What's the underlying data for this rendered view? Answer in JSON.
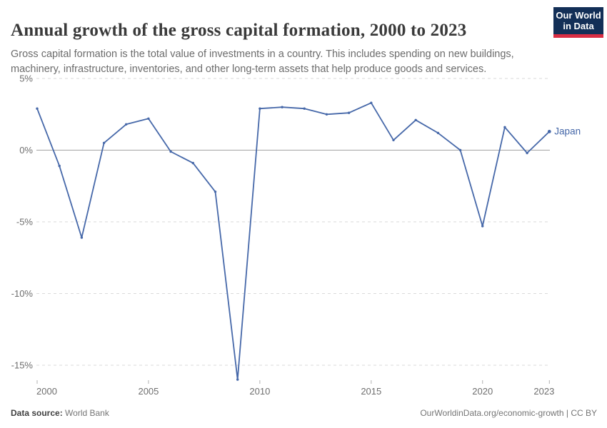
{
  "header": {
    "title": "Annual growth of the gross capital formation, 2000 to 2023",
    "subtitle": "Gross capital formation is the total value of investments in a country. This includes spending on new buildings, machinery, infrastructure, inventories, and other long-term assets that help produce goods and services.",
    "logo": {
      "line1": "Our World",
      "line2": "in Data",
      "bg": "#132f57",
      "accent": "#d92d43"
    }
  },
  "chart_data": {
    "type": "line",
    "title": "Annual growth of the gross capital formation, 2000 to 2023",
    "x": [
      2000,
      2001,
      2002,
      2003,
      2004,
      2005,
      2006,
      2007,
      2008,
      2009,
      2010,
      2011,
      2012,
      2013,
      2014,
      2015,
      2016,
      2017,
      2018,
      2019,
      2020,
      2021,
      2022,
      2023
    ],
    "series": [
      {
        "name": "Japan",
        "color": "#4668a9",
        "values": [
          2.9,
          -1.1,
          -6.1,
          0.5,
          1.8,
          2.2,
          -0.1,
          -0.9,
          -2.9,
          -16.0,
          2.9,
          3.0,
          2.9,
          2.5,
          2.6,
          3.3,
          0.7,
          2.1,
          1.2,
          0.0,
          -5.3,
          1.6,
          -0.2,
          1.3
        ]
      }
    ],
    "x_ticks": [
      2000,
      2005,
      2010,
      2015,
      2020,
      2023
    ],
    "y_ticks": [
      5,
      0,
      -5,
      -10,
      -15
    ],
    "y_tick_suffix": "%",
    "xlim": [
      2000,
      2023
    ],
    "ylim": [
      -16.5,
      5.2
    ],
    "grid": "horizontal dashed, solid zero line",
    "legend_position": "end-of-line label"
  },
  "footer": {
    "datasource_label": "Data source:",
    "datasource_value": "World Bank",
    "credit": "OurWorldinData.org/economic-growth | CC BY"
  }
}
